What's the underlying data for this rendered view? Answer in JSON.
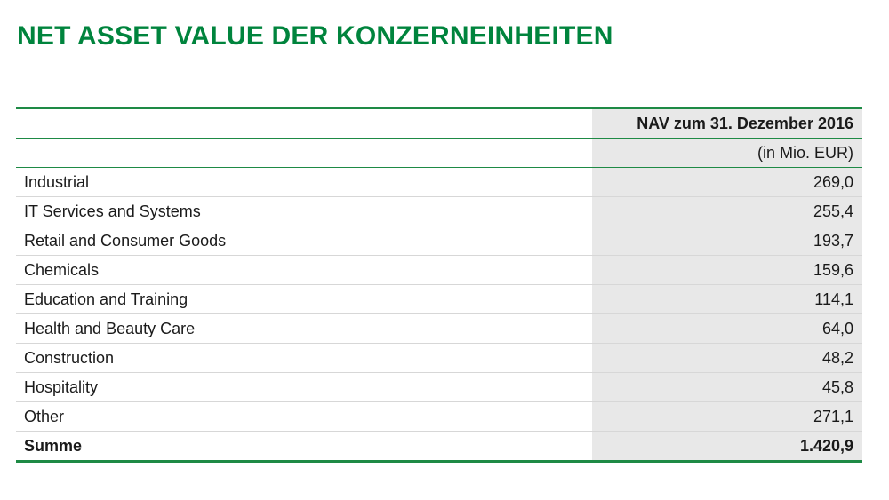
{
  "title": "NET ASSET VALUE DER KONZERNEINHEITEN",
  "table": {
    "header": "NAV zum 31. Dezember 2016",
    "unit": "(in Mio. EUR)",
    "rows": [
      {
        "label": "Industrial",
        "value": "269,0"
      },
      {
        "label": "IT Services and Systems",
        "value": "255,4"
      },
      {
        "label": "Retail and Consumer Goods",
        "value": "193,7"
      },
      {
        "label": "Chemicals",
        "value": "159,6"
      },
      {
        "label": "Education and Training",
        "value": "114,1"
      },
      {
        "label": "Health and Beauty Care",
        "value": "64,0"
      },
      {
        "label": "Construction",
        "value": "48,2"
      },
      {
        "label": "Hospitality",
        "value": "45,8"
      },
      {
        "label": "Other",
        "value": "271,1"
      }
    ],
    "total": {
      "label": "Summe",
      "value": "1.420,9"
    }
  },
  "colors": {
    "title": "#00843d",
    "rule": "#1e8a45",
    "value_column_bg": "#e8e8e8",
    "row_divider": "#d7d7d7"
  }
}
